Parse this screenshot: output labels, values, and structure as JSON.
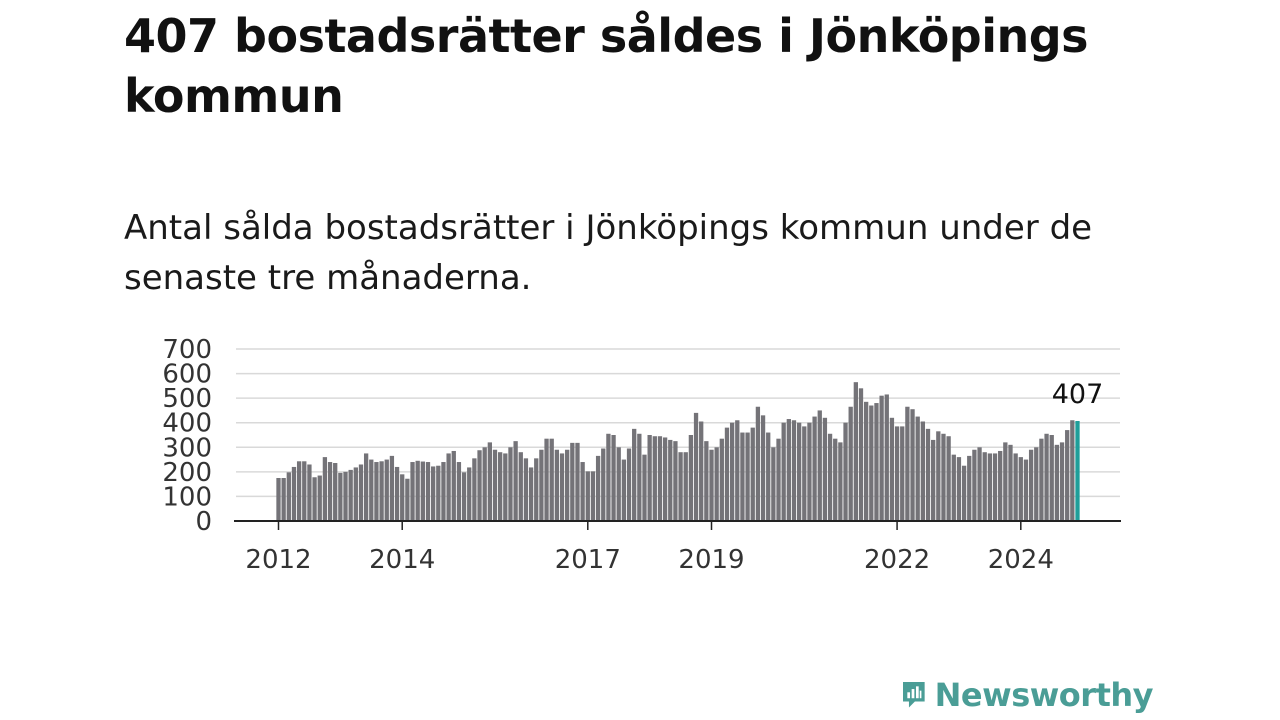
{
  "title": "407 bostadsrätter såldes i Jönköpings kommun",
  "subtitle": "Antal sålda bostadsrätter i Jönköpings kommun under de senaste tre månaderna.",
  "brand": {
    "name": "Newsworthy"
  },
  "colors": {
    "bar": "#747378",
    "highlight": "#1f9e9a",
    "grid": "#d9d9d9",
    "axis": "#222222",
    "brand": "#4a9d96"
  },
  "chart_data": {
    "type": "bar",
    "x_start": "2012-01",
    "x_end": "2025-01",
    "frequency": "monthly",
    "values": [
      175,
      175,
      198,
      220,
      243,
      243,
      230,
      178,
      185,
      260,
      240,
      236,
      196,
      200,
      208,
      218,
      230,
      275,
      250,
      240,
      243,
      250,
      265,
      220,
      190,
      172,
      240,
      245,
      242,
      240,
      222,
      225,
      240,
      275,
      285,
      240,
      198,
      218,
      255,
      288,
      300,
      320,
      290,
      280,
      275,
      300,
      325,
      280,
      255,
      218,
      255,
      290,
      335,
      335,
      290,
      275,
      290,
      318,
      318,
      240,
      202,
      202,
      265,
      295,
      355,
      350,
      300,
      250,
      295,
      375,
      355,
      270,
      350,
      345,
      345,
      340,
      330,
      325,
      280,
      280,
      350,
      440,
      405,
      325,
      290,
      300,
      335,
      380,
      400,
      410,
      360,
      360,
      380,
      465,
      430,
      360,
      300,
      335,
      400,
      415,
      410,
      400,
      385,
      400,
      425,
      450,
      420,
      355,
      335,
      320,
      400,
      465,
      565,
      540,
      485,
      470,
      480,
      510,
      515,
      420,
      385,
      385,
      465,
      455,
      425,
      405,
      375,
      330,
      365,
      355,
      345,
      270,
      260,
      225,
      265,
      290,
      300,
      280,
      275,
      275,
      285,
      320,
      310,
      275,
      260,
      250,
      290,
      300,
      335,
      355,
      350,
      310,
      320,
      370,
      410,
      407
    ],
    "highlight_last": true,
    "highlight_label": "407",
    "ylim": [
      0,
      700
    ],
    "yticks": [
      0,
      100,
      200,
      300,
      400,
      500,
      600,
      700
    ],
    "xtick_labels": [
      "2012",
      "2014",
      "2017",
      "2019",
      "2022",
      "2024"
    ],
    "xlabel": "",
    "ylabel": "",
    "grid": true
  }
}
